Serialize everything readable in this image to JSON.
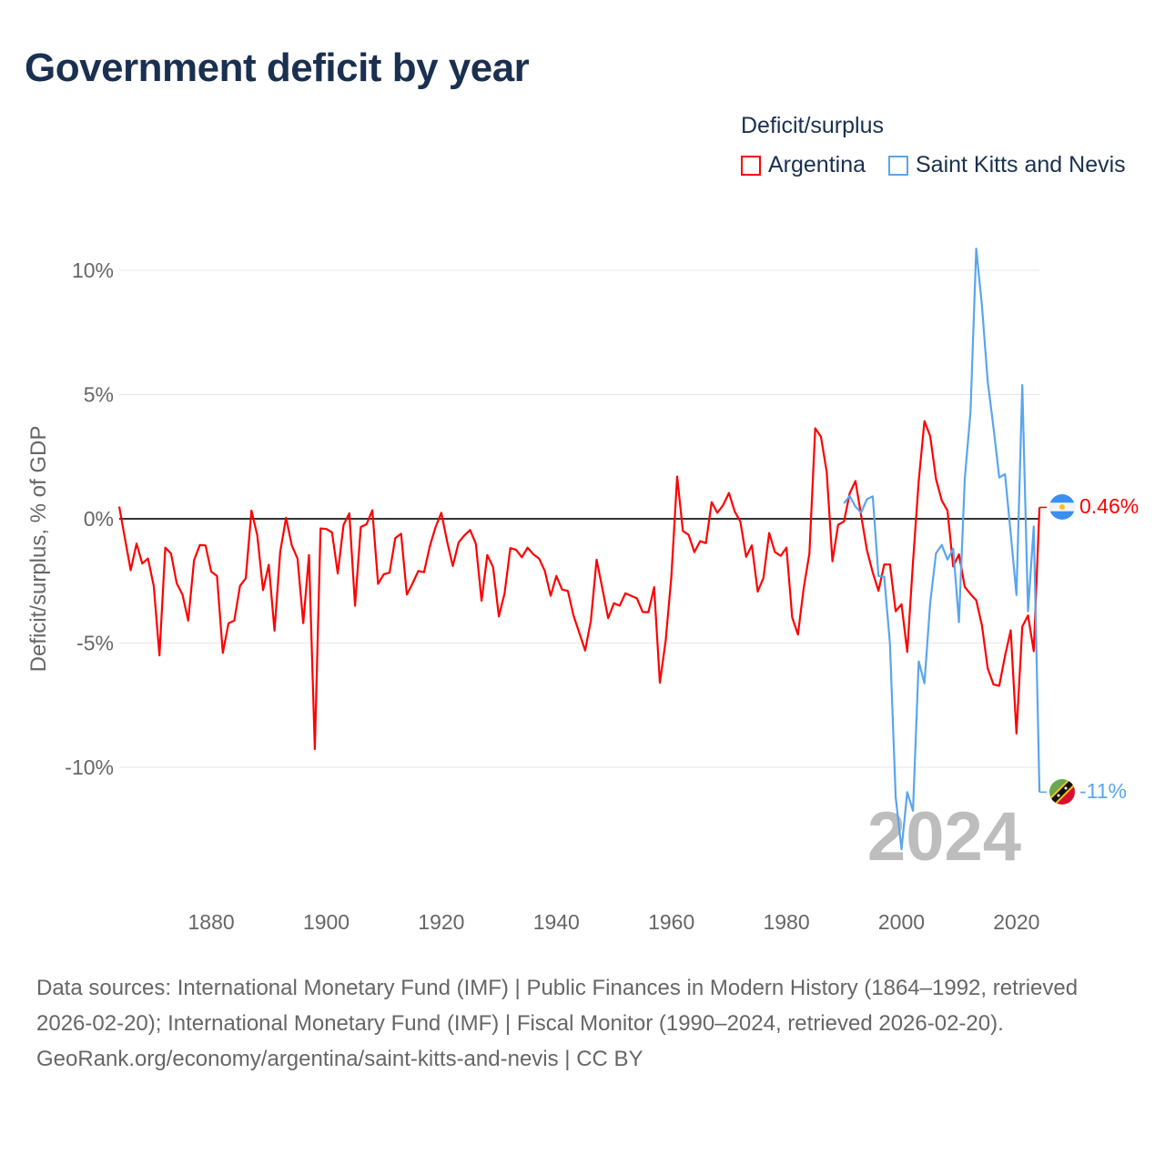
{
  "chart_data": {
    "type": "line",
    "title": "Government deficit by year",
    "legend_title": "Deficit/surplus",
    "legend_placement": "top-right",
    "ylabel": "Deficit/surplus, % of GDP",
    "xlabel": "",
    "xlim": [
      1864,
      2024
    ],
    "ylim": [
      -14,
      11
    ],
    "yticks": [
      10,
      5,
      0,
      -5,
      -10
    ],
    "ytick_labels": [
      "10%",
      "5%",
      "0%",
      "-5%",
      "-10%"
    ],
    "xticks": [
      1880,
      1900,
      1920,
      1940,
      1960,
      1980,
      2000,
      2020
    ],
    "xtick_labels": [
      "1880",
      "1900",
      "1920",
      "1940",
      "1960",
      "1980",
      "2000",
      "2020"
    ],
    "grid": true,
    "current_year_label": "2024",
    "series": [
      {
        "name": "Argentina",
        "color": "#ff0000",
        "start_year": 1864,
        "end_label": "0.46%",
        "flag": "argentina-flag",
        "values": [
          0.49,
          -0.8,
          -2.07,
          -1.0,
          -1.8,
          -1.6,
          -2.7,
          -5.5,
          -1.16,
          -1.4,
          -2.6,
          -3.05,
          -4.1,
          -1.67,
          -1.06,
          -1.07,
          -2.13,
          -2.3,
          -5.4,
          -4.2,
          -4.1,
          -2.7,
          -2.4,
          0.33,
          -0.67,
          -2.87,
          -1.85,
          -4.5,
          -1.32,
          0.04,
          -1.07,
          -1.6,
          -4.2,
          -1.46,
          -9.27,
          -0.39,
          -0.41,
          -0.55,
          -2.2,
          -0.24,
          0.22,
          -3.5,
          -0.33,
          -0.22,
          0.34,
          -2.62,
          -2.23,
          -2.17,
          -0.78,
          -0.6,
          -3.05,
          -2.6,
          -2.1,
          -2.15,
          -1.1,
          -0.33,
          0.24,
          -0.9,
          -1.9,
          -0.95,
          -0.67,
          -0.45,
          -1.0,
          -3.3,
          -1.46,
          -1.95,
          -3.93,
          -3.0,
          -1.18,
          -1.25,
          -1.55,
          -1.16,
          -1.43,
          -1.6,
          -2.1,
          -3.1,
          -2.3,
          -2.85,
          -2.9,
          -3.9,
          -4.6,
          -5.3,
          -4.1,
          -1.65,
          -2.8,
          -4.0,
          -3.4,
          -3.5,
          -3.0,
          -3.1,
          -3.2,
          -3.75,
          -3.76,
          -2.75,
          -6.6,
          -4.9,
          -2.3,
          1.7,
          -0.49,
          -0.65,
          -1.34,
          -0.9,
          -0.98,
          0.67,
          0.24,
          0.55,
          1.04,
          0.3,
          -0.12,
          -1.53,
          -1.07,
          -2.93,
          -2.38,
          -0.57,
          -1.34,
          -1.49,
          -1.16,
          -3.97,
          -4.66,
          -2.8,
          -1.4,
          3.64,
          3.3,
          1.89,
          -1.71,
          -0.24,
          -0.11,
          1.03,
          1.52,
          0.12,
          -1.26,
          -2.16,
          -2.9,
          -1.84,
          -1.84,
          -3.72,
          -3.44,
          -5.36,
          -1.75,
          1.52,
          3.93,
          3.33,
          1.6,
          0.74,
          0.33,
          -1.92,
          -1.43,
          -2.74,
          -3.03,
          -3.28,
          -4.3,
          -6.02,
          -6.67,
          -6.72,
          -5.52,
          -4.49,
          -8.64,
          -4.34,
          -3.89,
          -5.33,
          0.46
        ]
      },
      {
        "name": "Saint Kitts and Nevis",
        "color": "#5aa5ee",
        "start_year": 1990,
        "end_label": "-11%",
        "flag": "saint-kitts-and-nevis-flag",
        "values": [
          0.62,
          0.92,
          0.49,
          0.25,
          0.79,
          0.9,
          -2.3,
          -2.33,
          -5.03,
          -11.2,
          -13.3,
          -11.0,
          -11.75,
          -5.74,
          -6.62,
          -3.4,
          -1.39,
          -1.05,
          -1.64,
          -1.21,
          -4.16,
          1.6,
          4.3,
          10.87,
          8.57,
          5.54,
          3.66,
          1.66,
          1.8,
          -0.6,
          -3.07,
          5.38,
          -3.72,
          -0.31,
          -11.0
        ]
      }
    ]
  },
  "footer": {
    "sources": "Data sources: International Monetary Fund (IMF) | Public Finances in Modern History (1864–1992, retrieved 2026-02-20); International Monetary Fund (IMF) | Fiscal Monitor (1990–2024, retrieved 2026-02-20).",
    "attribution": "GeoRank.org/economy/argentina/saint-kitts-and-nevis | CC BY"
  }
}
